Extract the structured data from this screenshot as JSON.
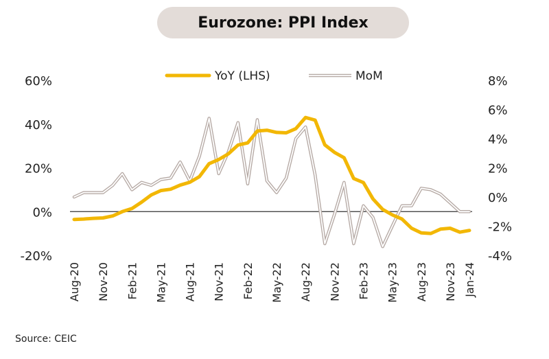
{
  "title": "Eurozone: PPI Index",
  "source": "Source: CEIC",
  "chart_data": {
    "type": "line",
    "title": "Eurozone: PPI Index",
    "x": [
      "2020-08",
      "2020-09",
      "2020-10",
      "2020-11",
      "2020-12",
      "2021-01",
      "2021-02",
      "2021-03",
      "2021-04",
      "2021-05",
      "2021-06",
      "2021-07",
      "2021-08",
      "2021-09",
      "2021-10",
      "2021-11",
      "2021-12",
      "2022-01",
      "2022-02",
      "2022-03",
      "2022-04",
      "2022-05",
      "2022-06",
      "2022-07",
      "2022-08",
      "2022-09",
      "2022-10",
      "2022-11",
      "2022-12",
      "2023-01",
      "2023-02",
      "2023-03",
      "2023-04",
      "2023-05",
      "2023-06",
      "2023-07",
      "2023-08",
      "2023-09",
      "2023-10",
      "2023-11",
      "2023-12",
      "2024-01"
    ],
    "x_tick_labels": [
      "Aug-20",
      "Nov-20",
      "Feb-21",
      "May-21",
      "Aug-21",
      "Nov-21",
      "Feb-22",
      "May-22",
      "Aug-22",
      "Nov-22",
      "Feb-23",
      "May-23",
      "Aug-23",
      "Nov-23",
      "Jan-24"
    ],
    "series": [
      {
        "name": "YoY (LHS)",
        "axis": "left",
        "color": "#f2b705",
        "values": [
          -3.6,
          -3.4,
          -3.1,
          -2.9,
          -2.0,
          0.0,
          1.4,
          4.3,
          7.6,
          9.6,
          10.2,
          12.1,
          13.4,
          16.0,
          21.9,
          23.8,
          26.4,
          30.4,
          31.4,
          36.8,
          37.2,
          36.2,
          36.0,
          37.9,
          43.0,
          41.8,
          30.5,
          27.1,
          24.6,
          15.1,
          13.3,
          5.8,
          1.0,
          -1.5,
          -3.4,
          -7.6,
          -9.7,
          -10.0,
          -8.0,
          -7.6,
          -9.4,
          -8.6
        ]
      },
      {
        "name": "MoM",
        "axis": "right",
        "color": "#b5a9a4",
        "values": [
          0.0,
          0.3,
          0.3,
          0.3,
          0.8,
          1.6,
          0.5,
          1.0,
          0.8,
          1.2,
          1.3,
          2.4,
          1.1,
          2.8,
          5.4,
          1.6,
          3.1,
          5.1,
          0.9,
          5.3,
          1.1,
          0.3,
          1.3,
          4.0,
          4.8,
          1.5,
          -3.2,
          -1.2,
          1.0,
          -3.2,
          -0.6,
          -1.4,
          -3.4,
          -2.0,
          -0.6,
          -0.6,
          0.6,
          0.5,
          0.2,
          -0.4,
          -1.0,
          -1.0
        ]
      }
    ],
    "y_left": {
      "min": -20,
      "max": 60,
      "ticks": [
        "-20%",
        "0%",
        "20%",
        "40%",
        "60%"
      ]
    },
    "y_right": {
      "min": -4,
      "max": 8,
      "ticks": [
        "-4%",
        "-2%",
        "0%",
        "2%",
        "4%",
        "6%",
        "8%"
      ]
    },
    "legend": "top-center",
    "grid": false
  }
}
